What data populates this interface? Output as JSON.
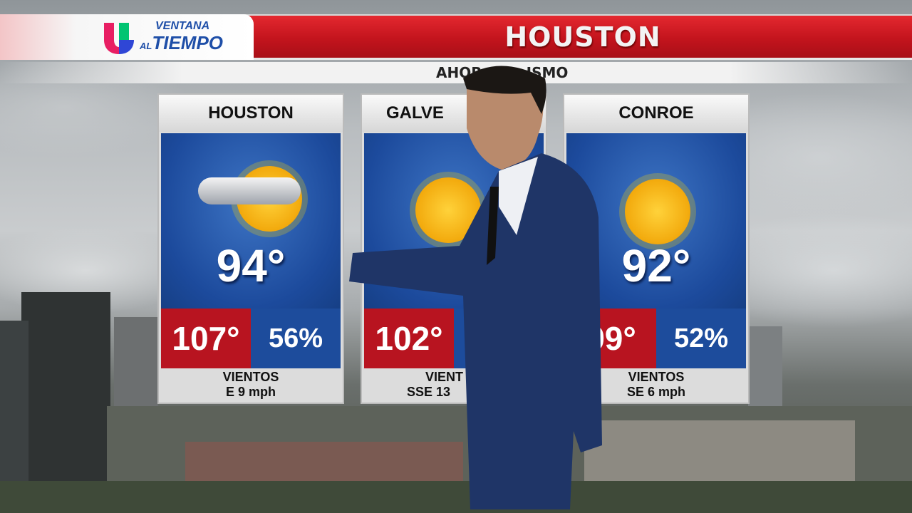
{
  "logo": {
    "line1": "VENTANA",
    "line2_prefix": "AL",
    "line2": "TIEMPO",
    "brand_colors": [
      "#e81e63",
      "#00c472",
      "#2f46d6"
    ]
  },
  "header": {
    "title": "HOUSTON",
    "subtitle": "AHOR",
    "subtitle_end": "ISMO"
  },
  "cards": [
    {
      "city": "HOUSTON",
      "icon": "partly-cloudy-icon",
      "temp": "94°",
      "feels_like": "107°",
      "humidity": "56%",
      "wind_label": "VIENTOS",
      "wind": "E 9 mph"
    },
    {
      "city": "GALVE",
      "icon": "sunny-icon",
      "temp": "8",
      "feels_like": "102°",
      "humidity": "",
      "wind_label": "VIENT",
      "wind": "SSE 13"
    },
    {
      "city": "CONROE",
      "icon": "sunny-icon",
      "temp": "92°",
      "feels_like": "99°",
      "humidity": "52%",
      "wind_label": "VIENTOS",
      "wind": "SE 6 mph"
    }
  ],
  "colors": {
    "banner": "#c3141d",
    "feels_like": "#b81420",
    "humidity": "#1d4c9c",
    "sky": "#1c4a9c"
  }
}
